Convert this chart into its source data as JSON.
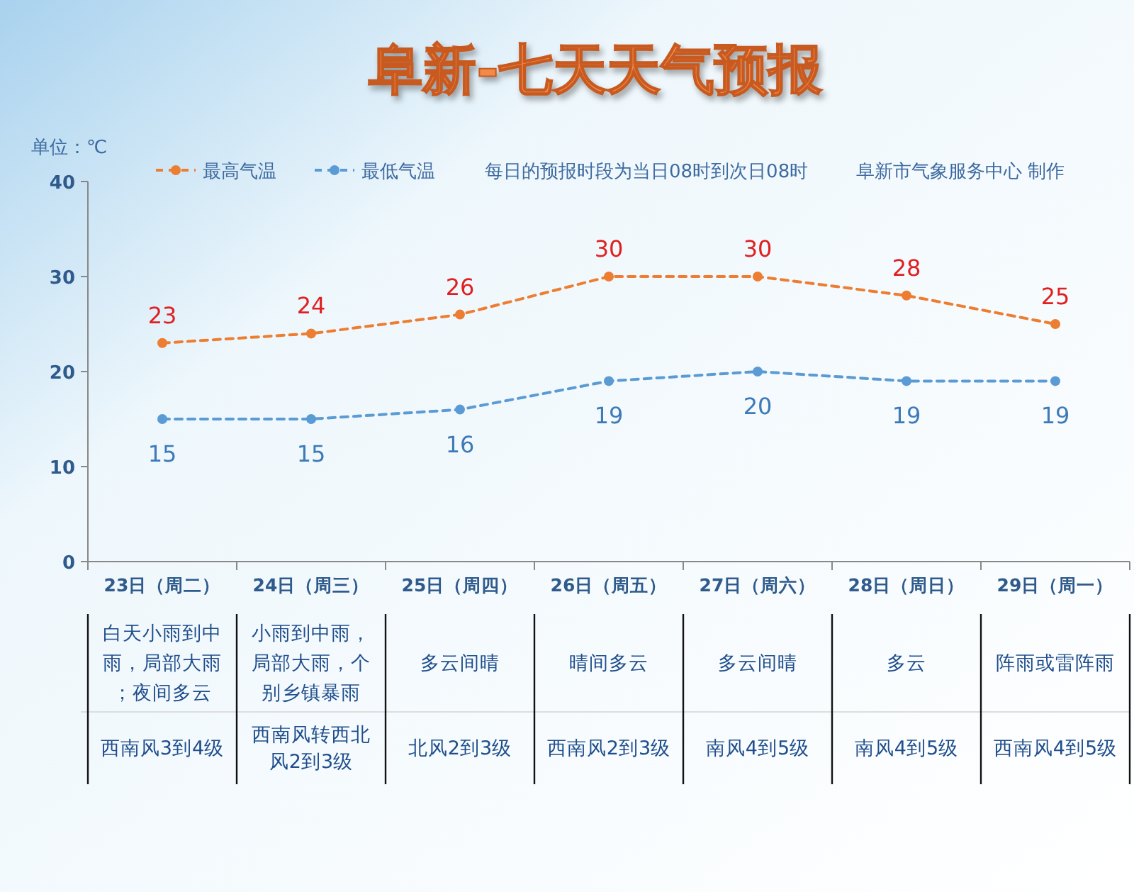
{
  "chart_data": {
    "type": "line",
    "title": "阜新-七天天气预报",
    "ylabel": "单位：℃",
    "categories": [
      "23日（周二）",
      "24日（周三）",
      "25日（周四）",
      "26日（周五）",
      "27日（周六）",
      "28日（周日）",
      "29日（周一）"
    ],
    "series": [
      {
        "name": "最高气温",
        "color": "#ed7d31",
        "values": [
          23,
          24,
          26,
          30,
          30,
          28,
          25
        ]
      },
      {
        "name": "最低气温",
        "color": "#5b9bd5",
        "values": [
          15,
          15,
          16,
          19,
          20,
          19,
          19
        ]
      }
    ],
    "ylim": [
      0,
      40
    ],
    "yticks": [
      0,
      10,
      20,
      30,
      40
    ],
    "data_labels": true,
    "marker": "circle",
    "line_style": "dashed",
    "legend": "top",
    "grid": false,
    "annotations": [
      "每日的预报时段为当日08时到次日08时",
      "阜新市气象服务中心 制作",
      "白天小雨到中雨，局部大雨；夜间多云",
      "小雨到中雨，局部大雨，个别乡镇暴雨",
      "多云间晴",
      "晴间多云",
      "多云间晴",
      "多云",
      "阵雨或雷阵雨",
      "西南风3到4级",
      "西南风转西北风2到3级",
      "北风2到3级",
      "西南风2到3级",
      "南风4到5级",
      "南风4到5级",
      "西南风4到5级"
    ]
  }
}
